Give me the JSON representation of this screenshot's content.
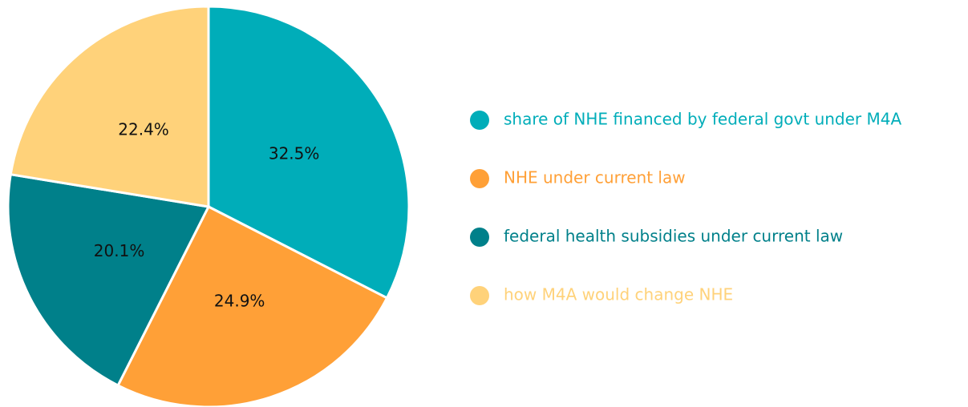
{
  "chart_data": {
    "type": "pie",
    "categories": [
      "share of NHE financed by federal govt under M4A",
      "NHE under current law",
      "federal health subsidies under current law",
      "how M4A would change NHE"
    ],
    "values": [
      32.5,
      24.9,
      20.1,
      22.4
    ],
    "value_labels": [
      "32.5%",
      "24.9%",
      "20.1%",
      "22.4%"
    ],
    "colors": [
      "#00adb9",
      "#ffa037",
      "#00808a",
      "#ffd27a"
    ],
    "legend": "right"
  }
}
